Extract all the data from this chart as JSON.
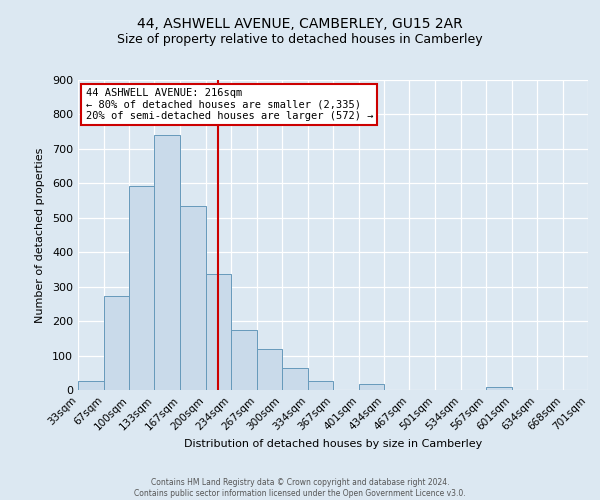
{
  "title1": "44, ASHWELL AVENUE, CAMBERLEY, GU15 2AR",
  "title2": "Size of property relative to detached houses in Camberley",
  "xlabel": "Distribution of detached houses by size in Camberley",
  "ylabel": "Number of detached properties",
  "bin_edges": [
    33,
    67,
    100,
    133,
    167,
    200,
    234,
    267,
    300,
    334,
    367,
    401,
    434,
    467,
    501,
    534,
    567,
    601,
    634,
    668,
    701
  ],
  "bar_heights": [
    25,
    272,
    592,
    740,
    535,
    338,
    175,
    120,
    65,
    25,
    0,
    18,
    0,
    0,
    0,
    0,
    8,
    0,
    0,
    0
  ],
  "bar_color": "#c9daea",
  "bar_edge_color": "#6699bb",
  "vline_x": 216,
  "vline_color": "#cc0000",
  "annotation_text": "44 ASHWELL AVENUE: 216sqm\n← 80% of detached houses are smaller (2,335)\n20% of semi-detached houses are larger (572) →",
  "annotation_box_facecolor": "#ffffff",
  "annotation_box_edgecolor": "#cc0000",
  "ylim": [
    0,
    900
  ],
  "yticks": [
    0,
    100,
    200,
    300,
    400,
    500,
    600,
    700,
    800,
    900
  ],
  "footer1": "Contains HM Land Registry data © Crown copyright and database right 2024.",
  "footer2": "Contains public sector information licensed under the Open Government Licence v3.0.",
  "bg_color": "#dce8f2",
  "title1_fontsize": 10,
  "title2_fontsize": 9,
  "axis_label_fontsize": 8,
  "tick_fontsize": 7.5,
  "footer_fontsize": 5.5
}
